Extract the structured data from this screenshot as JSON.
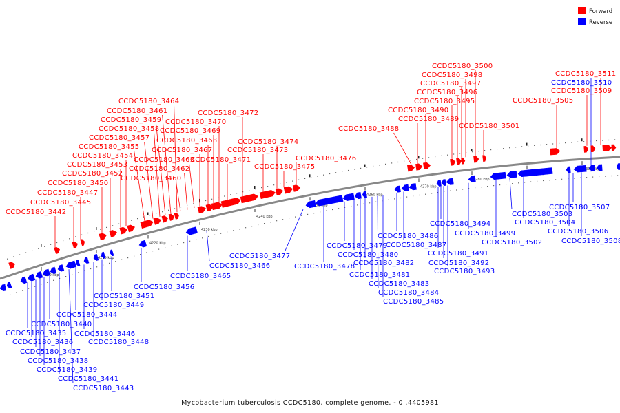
{
  "legend": {
    "forward": {
      "label": "Forward",
      "color": "#ff0000"
    },
    "reverse": {
      "label": "Reverse",
      "color": "#0000ff"
    }
  },
  "caption": "Mycobacterium tuberculosis CCDC5180, complete genome. - 0..4405981",
  "backbone": {
    "color": "#888888"
  },
  "ticks": [
    "4200 kbp",
    "4210 kbp",
    "4220 kbp",
    "4230 kbp",
    "4240 kbp",
    "4250 kbp",
    "4260 kbp",
    "4270 kbp",
    "4280 kbp",
    "4290 kbp",
    "4300 kbp"
  ],
  "forward_labels": [
    "CCDC5180_3442",
    "CCDC5180_3445",
    "CCDC5180_3447",
    "CCDC5180_3450",
    "CCDC5180_3452",
    "CCDC5180_3453",
    "CCDC5180_3454",
    "CCDC5180_3455",
    "CCDC5180_3457",
    "CCDC5180_3458",
    "CCDC5180_3459",
    "CCDC5180_3461",
    "CCDC5180_3464",
    "CCDC5180_3460",
    "CCDC5180_3462",
    "CCDC5180_3463",
    "CCDC5180_3467",
    "CCDC5180_3468",
    "CCDC5180_3469",
    "CCDC5180_3470",
    "CCDC5180_3471",
    "CCDC5180_3472",
    "CCDC5180_3473",
    "CCDC5180_3474",
    "CCDC5180_3475",
    "CCDC5180_3476",
    "CCDC5180_3488",
    "CCDC5180_3489",
    "CCDC5180_3490",
    "CCDC5180_3495",
    "CCDC5180_3496",
    "CCDC5180_3497",
    "CCDC5180_3498",
    "CCDC5180_3500",
    "CCDC5180_3501",
    "CCDC5180_3505",
    "CCDC5180_3509",
    "CCDC5180_3511"
  ],
  "reverse_labels": [
    "CCDC5180_3435",
    "CCDC5180_3436",
    "CCDC5180_3437",
    "CCDC5180_3438",
    "CCDC5180_3439",
    "CCDC5180_3440",
    "CCDC5180_3441",
    "CCDC5180_3443",
    "CCDC5180_3444",
    "CCDC5180_3446",
    "CCDC5180_3448",
    "CCDC5180_3449",
    "CCDC5180_3451",
    "CCDC5180_3456",
    "CCDC5180_3465",
    "CCDC5180_3466",
    "CCDC5180_3477",
    "CCDC5180_3478",
    "CCDC5180_3479",
    "CCDC5180_3480",
    "CCDC5180_3481",
    "CCDC5180_3482",
    "CCDC5180_3483",
    "CCDC5180_3484",
    "CCDC5180_3485",
    "CCDC5180_3486",
    "CCDC5180_3487",
    "CCDC5180_3491",
    "CCDC5180_3492",
    "CCDC5180_3493",
    "CCDC5180_3494",
    "CCDC5180_3499",
    "CCDC5180_3502",
    "CCDC5180_3503",
    "CCDC5180_3504",
    "CCDC5180_3506",
    "CCDC5180_3507",
    "CCDC5180_3508",
    "CCDC5180_3510"
  ]
}
